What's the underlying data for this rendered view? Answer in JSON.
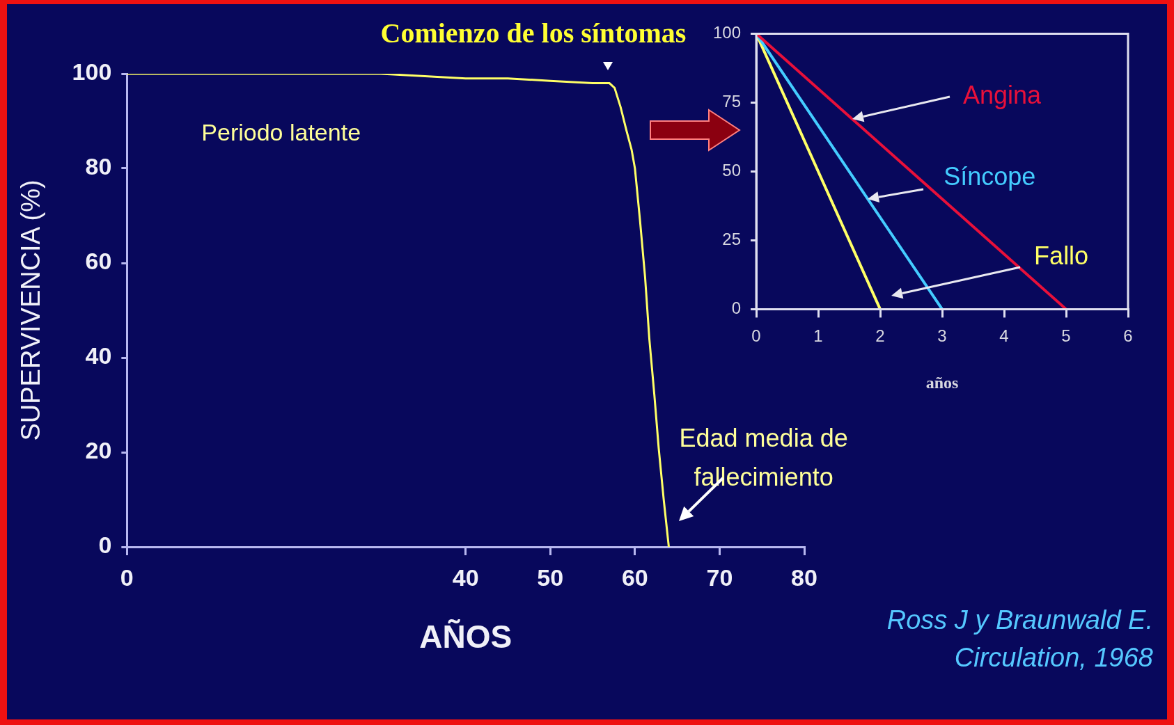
{
  "chart_data": [
    {
      "type": "line",
      "xlabel": "AÑOS",
      "ylabel": "SUPERVIVENCIA (%)",
      "x": [
        0,
        30,
        40,
        45,
        50,
        55,
        57,
        57.6,
        58.3,
        59,
        59.6,
        60,
        60.6,
        61.2,
        61.7,
        62.3,
        62.8,
        63.4,
        64
      ],
      "series": [
        {
          "color": "#ffff66",
          "values": [
            100,
            100,
            99,
            99,
            98.5,
            98,
            98,
            97,
            93,
            88,
            84,
            80,
            69,
            57,
            44,
            32,
            21,
            10,
            0
          ]
        }
      ],
      "xlim": [
        0,
        80
      ],
      "xticks": [
        0,
        40,
        50,
        60,
        70,
        80
      ],
      "ylim": [
        0,
        100
      ],
      "yticks": [
        0,
        20,
        40,
        60,
        80,
        100
      ],
      "annotations": [
        "Comienzo de los síntomas",
        "Periodo latente",
        "Edad media de fallecimiento",
        "Ross J y Braunwald E. Circulation, 1968"
      ]
    },
    {
      "type": "line",
      "xlabel": "años",
      "xlim": [
        0,
        6
      ],
      "xticks": [
        0,
        1,
        2,
        3,
        4,
        5,
        6
      ],
      "ylim": [
        0,
        100
      ],
      "yticks": [
        0,
        25,
        50,
        75,
        100
      ],
      "series": [
        {
          "name": "Angina",
          "color": "#e8103a",
          "x": [
            0,
            5
          ],
          "values": [
            100,
            0
          ]
        },
        {
          "name": "Síncope",
          "color": "#44ccff",
          "x": [
            0,
            3
          ],
          "values": [
            100,
            0
          ]
        },
        {
          "name": "Fallo",
          "color": "#ffff66",
          "x": [
            0,
            2
          ],
          "values": [
            100,
            0
          ]
        }
      ]
    }
  ]
}
